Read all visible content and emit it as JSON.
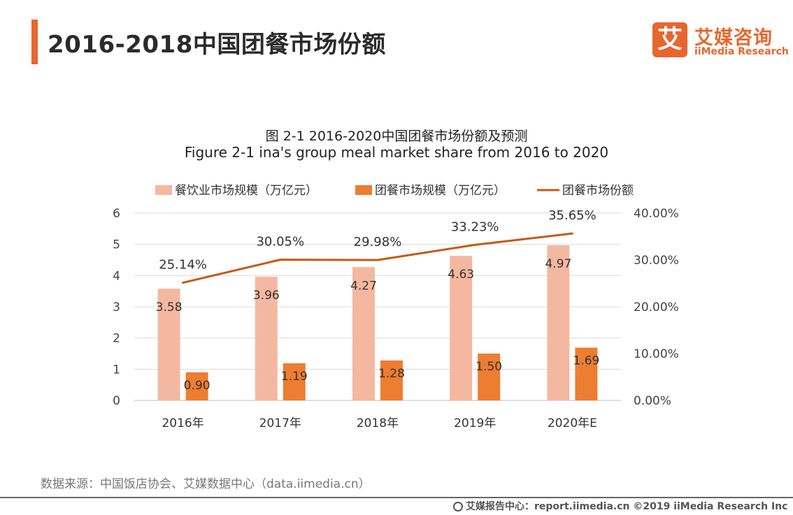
{
  "page": {
    "title": "2016-2018中国团餐市场份额",
    "logo": {
      "icon_glyph": "艾",
      "cn": "艾媒咨询",
      "en": "iiMedia Research",
      "color": "#e8662d"
    },
    "source": "数据来源：中国饭店协会、艾媒数据中心（data.iimedia.cn）",
    "footer": "艾媒报告中心：report.iimedia.cn  ©2019  iiMedia Research  Inc"
  },
  "chart_data": {
    "type": "bar",
    "title": "图 2-1 2016-2020中国团餐市场份额及预测",
    "subtitle": "Figure 2-1 ina's group meal market share from 2016 to 2020",
    "categories": [
      "2016年",
      "2017年",
      "2018年",
      "2019年",
      "2020年E"
    ],
    "series": [
      {
        "name": "餐饮业市场规模（万亿元）",
        "type": "bar",
        "axis": "left",
        "color": "#f4b8a0",
        "values": [
          3.58,
          3.96,
          4.27,
          4.63,
          4.97
        ],
        "labels": [
          "3.58",
          "3.96",
          "4.27",
          "4.63",
          "4.97"
        ]
      },
      {
        "name": "团餐市场规模（万亿元）",
        "type": "bar",
        "axis": "left",
        "color": "#ed7d31",
        "values": [
          0.9,
          1.19,
          1.28,
          1.5,
          1.69
        ],
        "labels": [
          "0.90",
          "1.19",
          "1.28",
          "1.50",
          "1.69"
        ]
      },
      {
        "name": "团餐市场份额",
        "type": "line",
        "axis": "right",
        "color": "#c55a11",
        "values": [
          25.14,
          30.05,
          29.98,
          33.23,
          35.65
        ],
        "labels": [
          "25.14%",
          "30.05%",
          "29.98%",
          "33.23%",
          "35.65%"
        ]
      }
    ],
    "y_left": {
      "ylim": [
        0,
        6
      ],
      "ticks": [
        0,
        1,
        2,
        3,
        4,
        5,
        6
      ],
      "tick_labels": [
        "0",
        "1",
        "2",
        "3",
        "4",
        "5",
        "6"
      ]
    },
    "y_right": {
      "ylim": [
        0,
        40
      ],
      "ticks": [
        0,
        10,
        20,
        30,
        40
      ],
      "tick_labels": [
        "0.00%",
        "10.00%",
        "20.00%",
        "30.00%",
        "40.00%"
      ]
    },
    "grid": true,
    "legend_position": "top"
  }
}
